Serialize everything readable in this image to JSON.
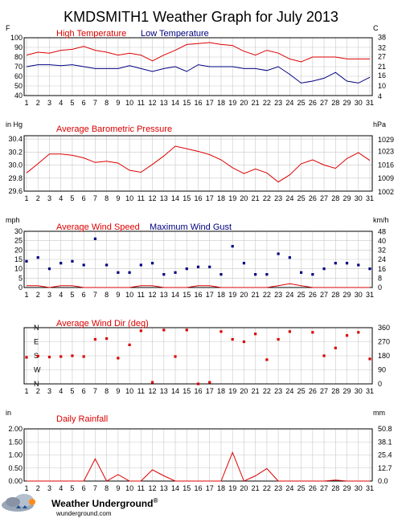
{
  "title": "KMDSMITH1 Weather Graph for July 2013",
  "colors": {
    "red": "#dd0000",
    "blue": "#000080",
    "grid": "#c8c8c8",
    "frame": "#000000"
  },
  "days": [
    "1",
    "2",
    "3",
    "4",
    "5",
    "6",
    "7",
    "8",
    "9",
    "10",
    "11",
    "12",
    "13",
    "14",
    "15",
    "16",
    "17",
    "18",
    "19",
    "20",
    "21",
    "22",
    "23",
    "24",
    "25",
    "26",
    "27",
    "28",
    "29",
    "30",
    "31"
  ],
  "chart_data": [
    {
      "type": "line",
      "left_unit": "F",
      "right_unit": "C",
      "x": [
        1,
        2,
        3,
        4,
        5,
        6,
        7,
        8,
        9,
        10,
        11,
        12,
        13,
        14,
        15,
        16,
        17,
        18,
        19,
        20,
        21,
        22,
        23,
        24,
        25,
        26,
        27,
        28,
        29,
        30,
        31
      ],
      "ylim": [
        40,
        100
      ],
      "yticks": [
        "40",
        "50",
        "60",
        "70",
        "80",
        "90",
        "100"
      ],
      "yticks_values": [
        40,
        50,
        60,
        70,
        80,
        90,
        100
      ],
      "right_ticks": [
        "4",
        "10",
        "16",
        "21",
        "27",
        "32",
        "38"
      ],
      "right_ticks_values": [
        39.2,
        50,
        60.8,
        69.8,
        80.6,
        89.6,
        100.4
      ],
      "series": [
        {
          "name": "High Temperature",
          "color": "#dd0000",
          "values": [
            82,
            85,
            84,
            87,
            88,
            91,
            87,
            85,
            82,
            84,
            82,
            76,
            82,
            87,
            93,
            94,
            95,
            93,
            92,
            86,
            82,
            87,
            84,
            78,
            75,
            80,
            80,
            80,
            78,
            78,
            78
          ]
        },
        {
          "name": "Low Temperature",
          "color": "#000080",
          "values": [
            70,
            72,
            72,
            71,
            72,
            70,
            68,
            68,
            68,
            71,
            68,
            65,
            68,
            70,
            65,
            72,
            70,
            70,
            70,
            68,
            68,
            66,
            70,
            62,
            53,
            55,
            58,
            64,
            55,
            53,
            59
          ]
        }
      ],
      "grid": true
    },
    {
      "type": "line",
      "left_unit": "in Hg",
      "right_unit": "hPa",
      "x": [
        1,
        2,
        3,
        4,
        5,
        6,
        7,
        8,
        9,
        10,
        11,
        12,
        13,
        14,
        15,
        16,
        17,
        18,
        19,
        20,
        21,
        22,
        23,
        24,
        25,
        26,
        27,
        28,
        29,
        30,
        31
      ],
      "ylim": [
        29.6,
        30.45
      ],
      "yticks": [
        "29.6",
        "29.8",
        "30.0",
        "30.2",
        "30.4"
      ],
      "yticks_values": [
        29.6,
        29.8,
        30.0,
        30.2,
        30.4
      ],
      "right_ticks": [
        "1002",
        "1009",
        "1016",
        "1023",
        "1029"
      ],
      "right_ticks_values": [
        29.59,
        29.8,
        30.0,
        30.21,
        30.39
      ],
      "series": [
        {
          "name": "Average Barometric Pressure",
          "color": "#dd0000",
          "values": [
            29.88,
            30.02,
            30.17,
            30.17,
            30.15,
            30.11,
            30.04,
            30.06,
            30.03,
            29.92,
            29.89,
            30.01,
            30.14,
            30.29,
            30.25,
            30.21,
            30.16,
            30.08,
            29.96,
            29.87,
            29.94,
            29.88,
            29.74,
            29.85,
            30.02,
            30.08,
            30.0,
            29.95,
            30.1,
            30.19,
            30.07
          ]
        }
      ],
      "grid": true
    },
    {
      "type": "scatter",
      "left_unit": "mph",
      "right_unit": "km/h",
      "x": [
        1,
        2,
        3,
        4,
        5,
        6,
        7,
        8,
        9,
        10,
        11,
        12,
        13,
        14,
        15,
        16,
        17,
        18,
        19,
        20,
        21,
        22,
        23,
        24,
        25,
        26,
        27,
        28,
        29,
        30,
        31
      ],
      "ylim": [
        0,
        30
      ],
      "yticks": [
        "0",
        "5",
        "10",
        "15",
        "20",
        "25",
        "30"
      ],
      "yticks_values": [
        0,
        5,
        10,
        15,
        20,
        25,
        30
      ],
      "right_ticks": [
        "0",
        "8",
        "16",
        "24",
        "32",
        "40",
        "48"
      ],
      "right_ticks_values": [
        0,
        4.97,
        9.94,
        14.91,
        19.88,
        24.85,
        29.82
      ],
      "series": [
        {
          "name": "Average Wind Speed",
          "color": "#dd0000",
          "style": "line",
          "values": [
            1,
            1,
            0,
            1,
            1,
            0,
            0,
            0,
            0,
            0,
            1,
            1,
            0,
            0,
            0,
            1,
            1,
            0,
            0,
            0,
            0,
            0,
            1,
            2,
            1,
            0,
            0,
            0,
            0,
            0,
            0
          ]
        },
        {
          "name": "Maximum Wind Gust",
          "color": "#000080",
          "style": "points",
          "values": [
            14,
            16,
            10,
            13,
            14,
            12,
            26,
            12,
            8,
            8,
            12,
            13,
            7,
            8,
            10,
            11,
            11,
            7,
            22,
            13,
            7,
            7,
            18,
            16,
            8,
            7,
            10,
            13,
            13,
            12,
            10
          ]
        }
      ],
      "grid": true
    },
    {
      "type": "scatter",
      "left_ticks": [
        "N",
        "W",
        "S",
        "E",
        "N"
      ],
      "right_ticks": [
        "0",
        "90",
        "180",
        "270",
        "360"
      ],
      "right_ticks_values": [
        0,
        90,
        180,
        270,
        360
      ],
      "x": [
        1,
        2,
        3,
        4,
        5,
        6,
        7,
        8,
        9,
        10,
        11,
        12,
        13,
        14,
        15,
        16,
        17,
        18,
        19,
        20,
        21,
        22,
        23,
        24,
        25,
        26,
        27,
        28,
        29,
        30,
        31
      ],
      "ylim": [
        0,
        360
      ],
      "series": [
        {
          "name": "Average Wind Dir (deg)",
          "color": "#dd0000",
          "style": "points",
          "values": [
            170,
            178,
            172,
            175,
            180,
            175,
            285,
            290,
            165,
            250,
            340,
            10,
            345,
            175,
            345,
            0,
            10,
            335,
            285,
            270,
            320,
            155,
            285,
            335,
            null,
            330,
            180,
            230,
            310,
            330,
            160
          ]
        }
      ],
      "grid": true
    },
    {
      "type": "line",
      "left_unit": "in",
      "right_unit": "mm",
      "x": [
        1,
        2,
        3,
        4,
        5,
        6,
        7,
        8,
        9,
        10,
        11,
        12,
        13,
        14,
        15,
        16,
        17,
        18,
        19,
        20,
        21,
        22,
        23,
        24,
        25,
        26,
        27,
        28,
        29,
        30,
        31
      ],
      "ylim": [
        0,
        2.0
      ],
      "yticks": [
        "0.00",
        "0.50",
        "1.00",
        "1.50",
        "2.00"
      ],
      "yticks_values": [
        0,
        0.5,
        1.0,
        1.5,
        2.0
      ],
      "right_ticks": [
        "0.0",
        "12.7",
        "25.4",
        "38.1",
        "50.8"
      ],
      "right_ticks_values": [
        0,
        0.5,
        1.0,
        1.5,
        2.0
      ],
      "series": [
        {
          "name": "Daily Rainfall",
          "color": "#dd0000",
          "values": [
            0,
            0,
            0,
            0,
            0,
            0,
            0.85,
            0,
            0.25,
            0,
            0,
            0.43,
            0.2,
            0,
            0,
            0,
            0,
            0,
            1.1,
            0,
            0.2,
            0.48,
            0,
            0,
            0,
            0,
            0,
            0.04,
            0,
            0,
            0
          ]
        }
      ],
      "grid": true
    }
  ],
  "logo": {
    "name": "Weather Underground",
    "registered": "®",
    "url": "wunderground.com"
  }
}
